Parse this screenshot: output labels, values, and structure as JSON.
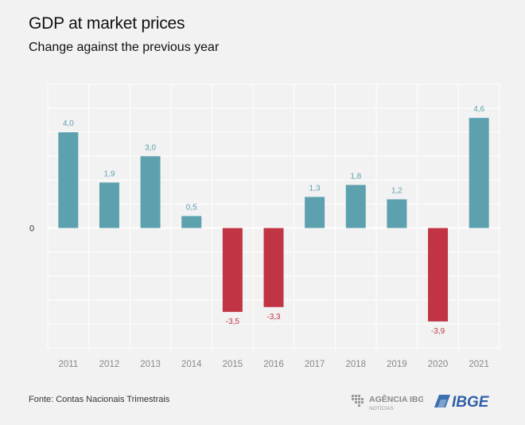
{
  "chart_data": {
    "type": "bar",
    "title": "GDP at market prices",
    "subtitle": "Change against the previous year",
    "categories": [
      "2011",
      "2012",
      "2013",
      "2014",
      "2015",
      "2016",
      "2017",
      "2018",
      "2019",
      "2020",
      "2021"
    ],
    "values": [
      4.0,
      1.9,
      3.0,
      0.5,
      -3.5,
      -3.3,
      1.3,
      1.8,
      1.2,
      -3.9,
      4.6
    ],
    "data_labels": [
      "4,0",
      "1,9",
      "3,0",
      "0,5",
      "-3,5",
      "-3,3",
      "1,3",
      "1,8",
      "1,2",
      "-3,9",
      "4,6"
    ],
    "zero_label": "0",
    "ylim": [
      -5.1,
      6.0
    ],
    "grid": true,
    "colors": {
      "positive": "#5ea1ae",
      "negative": "#c13444",
      "positive_label": "#5ea1ae",
      "negative_label": "#c13444"
    }
  },
  "footer": {
    "source": "Fonte: Contas Nacionais Trimestrais",
    "agencia_line1": "AGÊNCIA IBGE",
    "agencia_line2": "NOTÍCIAS",
    "ibge_logo_text": "IBGE"
  }
}
